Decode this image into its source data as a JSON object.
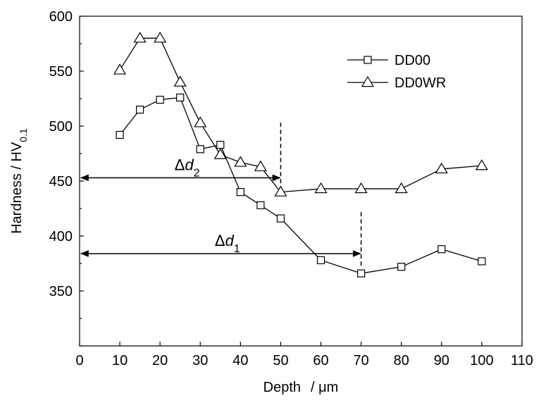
{
  "chart_data": {
    "type": "line",
    "xlabel_main": "Depth",
    "xlabel_unit": "/ μm",
    "ylabel_main": "Hardness / HV",
    "ylabel_sub": "0.1",
    "xlim": [
      0,
      110
    ],
    "ylim": [
      300,
      600
    ],
    "xticks": [
      0,
      10,
      20,
      30,
      40,
      50,
      60,
      70,
      80,
      90,
      100,
      110
    ],
    "yticks": [
      350,
      400,
      450,
      500,
      550,
      600
    ],
    "grid": false,
    "legend_position": "top-right",
    "series": [
      {
        "name": "DD00",
        "marker": "square",
        "x": [
          10,
          15,
          20,
          25,
          30,
          35,
          40,
          45,
          50,
          60,
          70,
          80,
          90,
          100
        ],
        "y": [
          492,
          515,
          524,
          526,
          479,
          483,
          440,
          428,
          416,
          378,
          366,
          372,
          388,
          377
        ]
      },
      {
        "name": "DD0WR",
        "marker": "triangle",
        "x": [
          10,
          15,
          20,
          25,
          30,
          35,
          40,
          45,
          50,
          60,
          70,
          80,
          90,
          100
        ],
        "y": [
          551,
          580,
          580,
          540,
          503,
          474,
          467,
          463,
          440,
          443,
          443,
          443,
          461,
          464
        ]
      }
    ],
    "annotations": [
      {
        "label_symbol": "Δ",
        "label_var": "d",
        "label_sub": "2",
        "x_from": 0,
        "x_to": 50,
        "y": 453,
        "vline_x": 50,
        "vline_y": [
          448,
          505
        ]
      },
      {
        "label_symbol": "Δ",
        "label_var": "d",
        "label_sub": "1",
        "x_from": 0,
        "x_to": 70,
        "y": 384,
        "vline_x": 70,
        "vline_y": [
          373,
          422
        ]
      }
    ]
  }
}
